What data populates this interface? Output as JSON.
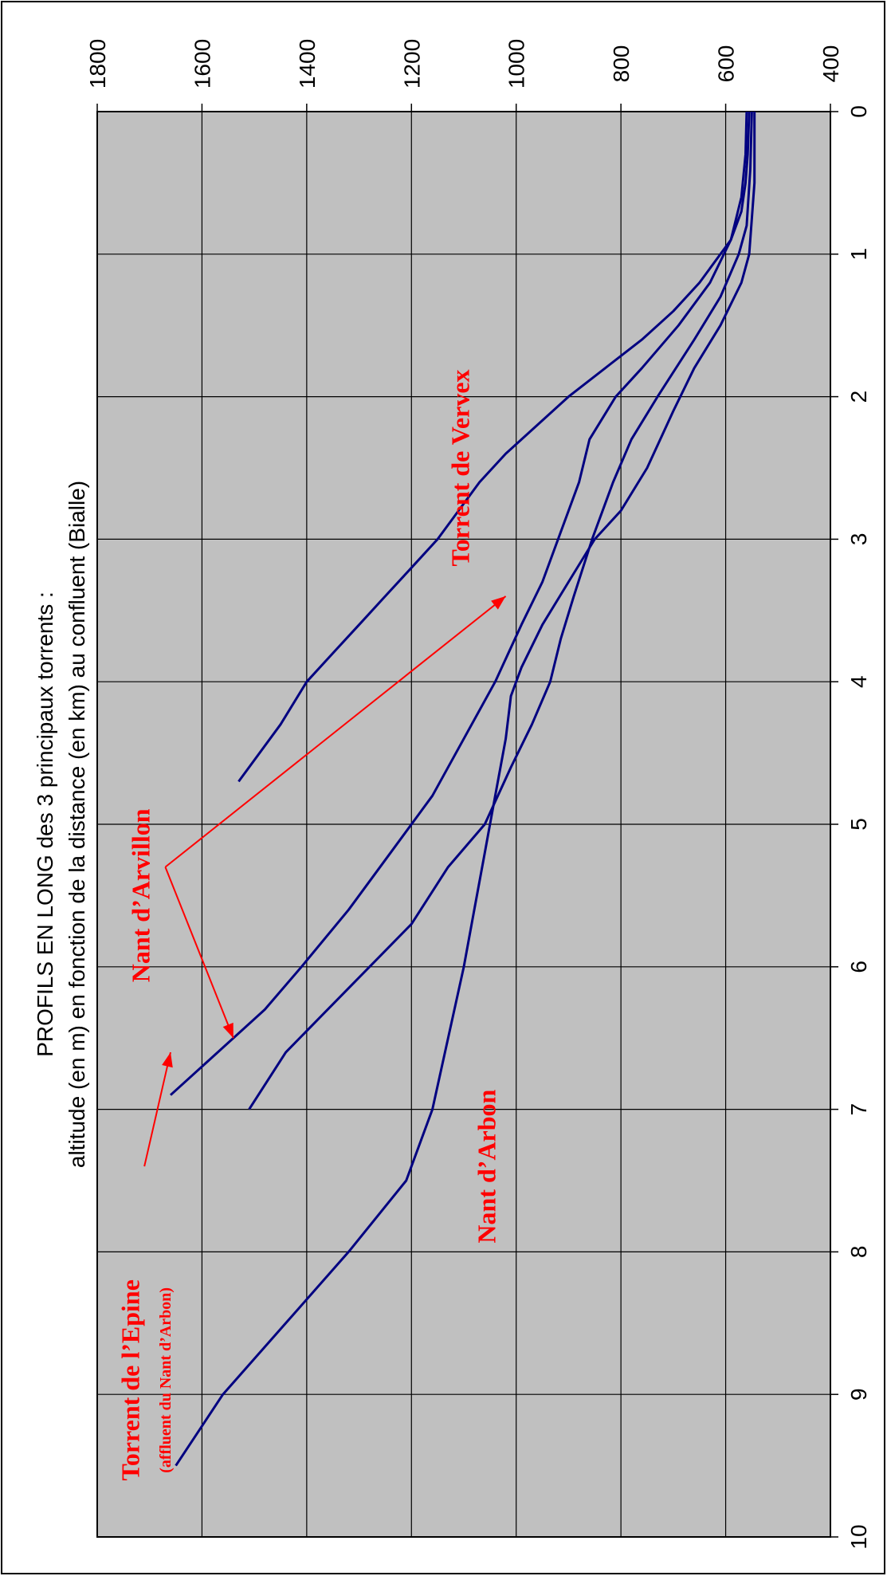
{
  "chart_data": {
    "type": "line",
    "title": "PROFILS EN LONG des 3 principaux torrents :",
    "subtitle": "altitude (en m) en fonction de la distance (en km) au confluent (Bialle)",
    "xlabel": "",
    "ylabel": "",
    "xlim": [
      0,
      10
    ],
    "ylim": [
      400,
      1800
    ],
    "x_ticks": [
      "0",
      "1",
      "2",
      "3",
      "4",
      "5",
      "6",
      "7",
      "8",
      "9",
      "10"
    ],
    "y_ticks": [
      "400",
      "600",
      "800",
      "1000",
      "1200",
      "1400",
      "1600",
      "1800"
    ],
    "grid": true,
    "line_color": "#000080",
    "plot_background": "#c0c0c0",
    "series": [
      {
        "x": [
          0,
          0.3,
          0.5,
          0.7,
          0.9,
          1.0,
          1.2,
          1.4,
          1.6,
          1.8,
          2.0,
          2.2,
          2.4,
          2.6,
          2.8,
          3.0,
          3.2,
          3.4,
          3.6,
          3.8,
          4.0,
          4.3,
          4.7
        ],
        "y": [
          555,
          558,
          562,
          570,
          590,
          610,
          650,
          700,
          760,
          830,
          900,
          960,
          1020,
          1070,
          1110,
          1150,
          1200,
          1250,
          1300,
          1350,
          1400,
          1450,
          1530
        ]
      },
      {
        "x": [
          0,
          0.3,
          0.6,
          0.9,
          1.2,
          1.5,
          1.8,
          2.0,
          2.3,
          2.6,
          3.0,
          3.3,
          3.6,
          4.0,
          4.4,
          4.8,
          5.2,
          5.6,
          6.0,
          6.3,
          6.6,
          6.9
        ],
        "y": [
          560,
          562,
          570,
          590,
          630,
          690,
          760,
          810,
          860,
          880,
          920,
          950,
          990,
          1040,
          1100,
          1160,
          1240,
          1320,
          1410,
          1480,
          1570,
          1660
        ]
      },
      {
        "x": [
          0,
          0.4,
          0.8,
          1.0,
          1.3,
          1.6,
          2.0,
          2.3,
          2.6,
          3.0,
          3.4,
          3.7,
          4.0,
          4.3,
          4.6,
          5.0,
          5.3,
          5.7,
          6.0,
          6.3,
          6.6,
          7.0
        ],
        "y": [
          550,
          553,
          560,
          575,
          610,
          660,
          730,
          780,
          815,
          855,
          890,
          915,
          935,
          970,
          1010,
          1060,
          1130,
          1200,
          1280,
          1360,
          1440,
          1510
        ]
      },
      {
        "x": [
          0,
          0.5,
          1.0,
          1.2,
          1.5,
          1.8,
          2.1,
          2.5,
          2.8,
          3.0,
          3.3,
          3.6,
          3.9,
          4.1,
          4.4,
          4.8,
          5.2,
          5.6,
          6.0,
          6.5,
          7.0,
          7.5,
          8.0,
          8.5,
          9.0,
          9.5
        ],
        "y": [
          545,
          545,
          555,
          570,
          610,
          660,
          700,
          750,
          800,
          850,
          900,
          950,
          990,
          1010,
          1020,
          1040,
          1060,
          1080,
          1100,
          1130,
          1160,
          1210,
          1320,
          1440,
          1560,
          1650
        ]
      }
    ],
    "annotations": [
      {
        "text": "Torrent de Vervex",
        "x": 2.5,
        "y": 1090
      },
      {
        "text": "Nant d’Arvillon",
        "x": 5.5,
        "y": 1700
      },
      {
        "text": "Nant d’Arbon",
        "x": 7.4,
        "y": 1040
      },
      {
        "text": "Torrent de l’Epine",
        "x": 8.9,
        "y": 1720
      },
      {
        "text": "(affluent du Nant d’Arbon)",
        "x": 8.9,
        "y": 1660
      }
    ],
    "arrows": [
      {
        "from": [
          5.3,
          1670
        ],
        "to": [
          3.4,
          1020
        ]
      },
      {
        "from": [
          5.3,
          1670
        ],
        "to": [
          6.5,
          1540
        ]
      },
      {
        "from": [
          7.4,
          1710
        ],
        "to": [
          6.6,
          1660
        ]
      }
    ]
  }
}
